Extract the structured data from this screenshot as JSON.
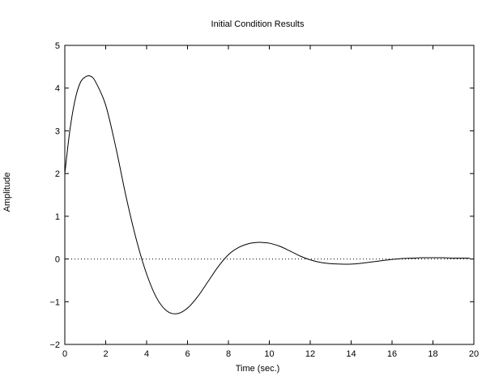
{
  "chart_data": {
    "type": "line",
    "title": "Initial Condition Results",
    "xlabel": "Time (sec.)",
    "ylabel": "Amplitude",
    "xlim": [
      0,
      20
    ],
    "ylim": [
      -2,
      5
    ],
    "xticks": [
      0,
      2,
      4,
      6,
      8,
      10,
      12,
      14,
      16,
      18,
      20
    ],
    "yticks": [
      -2,
      -1,
      0,
      1,
      2,
      3,
      4,
      5
    ],
    "xtick_labels": [
      "0",
      "2",
      "4",
      "6",
      "8",
      "10",
      "12",
      "14",
      "16",
      "18",
      "20"
    ],
    "ytick_labels": [
      "−2",
      "−1",
      "0",
      "1",
      "2",
      "3",
      "4",
      "5"
    ],
    "grid": false,
    "reference_line": {
      "y": 0,
      "style": "dotted"
    },
    "series": [
      {
        "color": "#000000",
        "x": [
          0,
          0.25,
          0.5,
          0.75,
          1.0,
          1.25,
          1.5,
          2.0,
          2.5,
          3.0,
          3.5,
          4.0,
          4.5,
          5.0,
          5.5,
          6.0,
          6.5,
          7.0,
          7.5,
          8.0,
          8.5,
          9.0,
          9.5,
          9.8,
          10.0,
          10.5,
          11.0,
          11.5,
          12.0,
          12.5,
          13.0,
          13.5,
          14.0,
          14.5,
          15.0,
          15.5,
          16.0,
          16.5,
          17.0,
          17.5,
          18.0,
          18.5,
          19.0,
          19.5,
          19.8
        ],
        "y": [
          2.0,
          3.02,
          3.72,
          4.12,
          4.26,
          4.28,
          4.15,
          3.6,
          2.6,
          1.45,
          0.45,
          -0.35,
          -0.92,
          -1.22,
          -1.28,
          -1.15,
          -0.88,
          -0.53,
          -0.18,
          0.1,
          0.27,
          0.36,
          0.39,
          0.38,
          0.37,
          0.3,
          0.19,
          0.07,
          -0.02,
          -0.08,
          -0.11,
          -0.12,
          -0.12,
          -0.1,
          -0.07,
          -0.04,
          -0.01,
          0.01,
          0.02,
          0.03,
          0.03,
          0.03,
          0.02,
          0.02,
          0.02
        ]
      }
    ]
  }
}
